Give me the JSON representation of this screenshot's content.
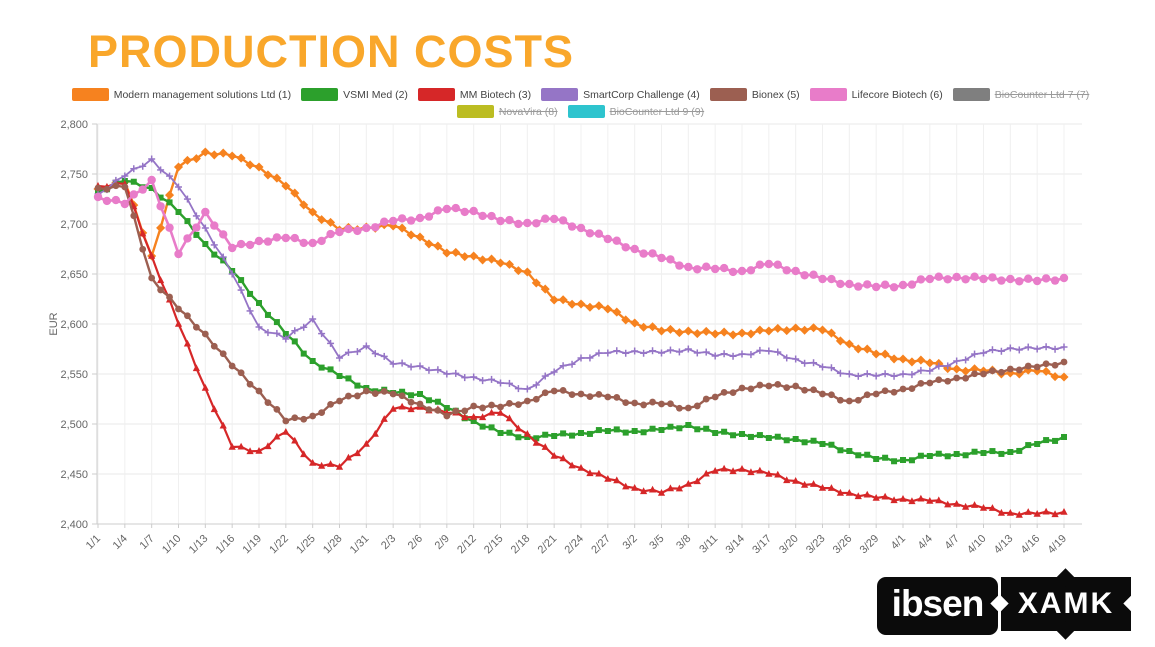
{
  "page": {
    "title": "PRODUCTION COSTS"
  },
  "logos": {
    "ibsen": "ibsen",
    "xamk": "XAMK"
  },
  "chart_data": {
    "type": "line",
    "title": "PRODUCTION COSTS",
    "xlabel": "",
    "ylabel": "EUR",
    "ylim": [
      2400,
      2800
    ],
    "ytick_step": 50,
    "ytick_labels": [
      "2,400",
      "2,450",
      "2,500",
      "2,550",
      "2,600",
      "2,650",
      "2,700",
      "2,750",
      "2,800"
    ],
    "grid": true,
    "legend_position": "top",
    "categories": [
      "1/1",
      "1/4",
      "1/7",
      "1/10",
      "1/13",
      "1/16",
      "1/19",
      "1/22",
      "1/25",
      "1/28",
      "1/31",
      "2/3",
      "2/6",
      "2/9",
      "2/12",
      "2/15",
      "2/18",
      "2/21",
      "2/24",
      "2/27",
      "3/2",
      "3/5",
      "3/8",
      "3/11",
      "3/14",
      "3/17",
      "3/20",
      "3/23",
      "3/26",
      "3/29",
      "4/1",
      "4/4",
      "4/7",
      "4/10",
      "4/13",
      "4/16",
      "4/19"
    ],
    "series": [
      {
        "name": "Modern management solutions Ltd (1)",
        "color": "#F6821F",
        "marker": "diamond",
        "enabled": true,
        "width": 2.4,
        "msize": 3.2,
        "values": [
          2735,
          2742,
          2668,
          2757,
          2772,
          2768,
          2757,
          2738,
          2712,
          2694,
          2697,
          2698,
          2687,
          2671,
          2668,
          2661,
          2652,
          2624,
          2620,
          2615,
          2601,
          2593,
          2593,
          2590,
          2591,
          2593,
          2596,
          2594,
          2580,
          2570,
          2565,
          2561,
          2555,
          2553,
          2551,
          2553,
          2547
        ]
      },
      {
        "name": "VSMI Med (2)",
        "color": "#2CA02C",
        "marker": "square",
        "enabled": true,
        "width": 2.4,
        "msize": 3.0,
        "values": [
          2733,
          2743,
          2736,
          2712,
          2680,
          2653,
          2621,
          2590,
          2563,
          2548,
          2536,
          2531,
          2530,
          2516,
          2503,
          2491,
          2487,
          2488,
          2491,
          2493,
          2493,
          2494,
          2499,
          2491,
          2490,
          2486,
          2485,
          2480,
          2473,
          2465,
          2464,
          2468,
          2470,
          2471,
          2472,
          2480,
          2487
        ]
      },
      {
        "name": "MM Biotech (3)",
        "color": "#D62728",
        "marker": "triangle",
        "enabled": true,
        "width": 2.2,
        "msize": 3.2,
        "values": [
          2738,
          2740,
          2668,
          2600,
          2536,
          2477,
          2473,
          2492,
          2461,
          2457,
          2480,
          2515,
          2517,
          2511,
          2507,
          2511,
          2490,
          2468,
          2456,
          2445,
          2436,
          2431,
          2440,
          2453,
          2455,
          2450,
          2443,
          2436,
          2431,
          2426,
          2425,
          2423,
          2420,
          2416,
          2411,
          2410,
          2412
        ]
      },
      {
        "name": "SmartCorp Challenge (4)",
        "color": "#9575C6",
        "marker": "plus",
        "enabled": true,
        "width": 1.8,
        "msize": 3.5,
        "values": [
          2730,
          2748,
          2765,
          2737,
          2696,
          2650,
          2597,
          2585,
          2605,
          2566,
          2578,
          2560,
          2558,
          2550,
          2547,
          2541,
          2535,
          2552,
          2566,
          2571,
          2573,
          2571,
          2575,
          2568,
          2570,
          2573,
          2565,
          2557,
          2550,
          2548,
          2550,
          2553,
          2563,
          2571,
          2576,
          2575,
          2577
        ]
      },
      {
        "name": "Bionex (5)",
        "color": "#9C5F51",
        "marker": "circle",
        "enabled": true,
        "width": 2.4,
        "msize": 3.4,
        "values": [
          2736,
          2737,
          2646,
          2615,
          2590,
          2558,
          2533,
          2503,
          2508,
          2523,
          2533,
          2530,
          2520,
          2508,
          2518,
          2517,
          2523,
          2533,
          2530,
          2527,
          2521,
          2520,
          2516,
          2527,
          2536,
          2538,
          2538,
          2530,
          2523,
          2530,
          2535,
          2541,
          2546,
          2550,
          2555,
          2557,
          2562
        ]
      },
      {
        "name": "Lifecore Biotech (6)",
        "color": "#E87CC9",
        "marker": "circle",
        "enabled": true,
        "width": 2.6,
        "msize": 4.2,
        "values": [
          2727,
          2720,
          2744,
          2670,
          2712,
          2676,
          2683,
          2686,
          2681,
          2692,
          2696,
          2703,
          2706,
          2715,
          2713,
          2703,
          2701,
          2705,
          2696,
          2685,
          2675,
          2666,
          2657,
          2655,
          2653,
          2660,
          2653,
          2645,
          2640,
          2637,
          2639,
          2645,
          2647,
          2645,
          2645,
          2643,
          2646
        ]
      },
      {
        "name": "BioCounter Ltd 7 (7)",
        "color": "#7F7F7F",
        "marker": "circle",
        "enabled": false,
        "values": null
      },
      {
        "name": "NovaVira (8)",
        "color": "#BCBD22",
        "marker": "circle",
        "enabled": false,
        "values": null
      },
      {
        "name": "BioCounter Ltd 9 (9)",
        "color": "#2EC4CE",
        "marker": "circle",
        "enabled": false,
        "values": null
      }
    ]
  }
}
